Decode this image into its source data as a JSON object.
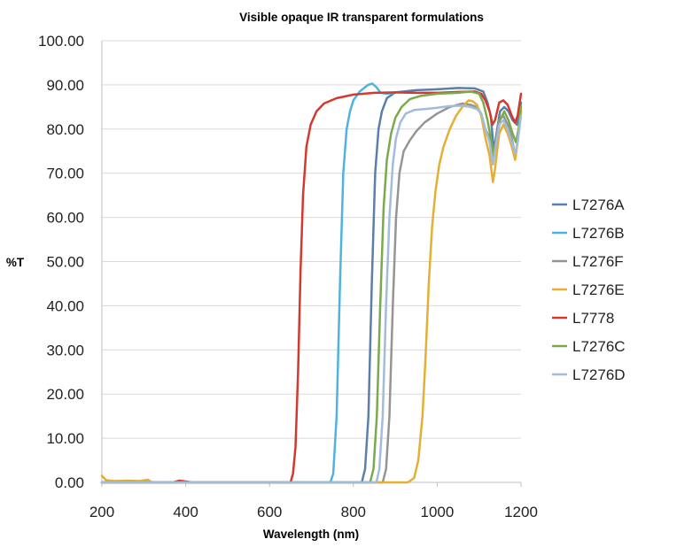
{
  "chart_data": {
    "type": "line",
    "title": "Visible opaque IR transparent formulations",
    "xlabel": "Wavelength (nm)",
    "ylabel": "%T",
    "xlim": [
      200,
      1200
    ],
    "ylim": [
      0,
      100
    ],
    "x_ticks": [
      "200",
      "400",
      "600",
      "800",
      "1000",
      "1200"
    ],
    "y_ticks": [
      "0.00",
      "10.00",
      "20.00",
      "30.00",
      "40.00",
      "50.00",
      "60.00",
      "70.00",
      "80.00",
      "90.00",
      "100.00"
    ],
    "grid": "horizontal",
    "legend_position": "right",
    "series": [
      {
        "name": "L7276A",
        "color": "#5b7fa8",
        "points": [
          [
            200,
            0
          ],
          [
            820,
            0
          ],
          [
            828,
            3
          ],
          [
            836,
            15
          ],
          [
            844,
            45
          ],
          [
            852,
            70
          ],
          [
            860,
            80
          ],
          [
            868,
            84
          ],
          [
            880,
            87
          ],
          [
            900,
            88.3
          ],
          [
            950,
            88.8
          ],
          [
            1000,
            89.0
          ],
          [
            1050,
            89.3
          ],
          [
            1090,
            89.2
          ],
          [
            1110,
            88.5
          ],
          [
            1120,
            86
          ],
          [
            1128,
            83
          ],
          [
            1135,
            75
          ],
          [
            1140,
            78
          ],
          [
            1150,
            84
          ],
          [
            1160,
            85
          ],
          [
            1170,
            84
          ],
          [
            1180,
            82
          ],
          [
            1190,
            81
          ],
          [
            1200,
            86
          ]
        ]
      },
      {
        "name": "L7276B",
        "color": "#4fb3e0",
        "points": [
          [
            200,
            0
          ],
          [
            745,
            0
          ],
          [
            752,
            2
          ],
          [
            760,
            15
          ],
          [
            768,
            45
          ],
          [
            776,
            70
          ],
          [
            784,
            80
          ],
          [
            792,
            84
          ],
          [
            800,
            86.5
          ],
          [
            815,
            88.5
          ],
          [
            835,
            90
          ],
          [
            845,
            90.3
          ],
          [
            855,
            89.5
          ],
          [
            865,
            88.2
          ],
          [
            880,
            88
          ],
          [
            900,
            88.2
          ]
        ]
      },
      {
        "name": "L7276F",
        "color": "#959595",
        "points": [
          [
            200,
            0
          ],
          [
            870,
            0
          ],
          [
            878,
            3
          ],
          [
            886,
            15
          ],
          [
            894,
            40
          ],
          [
            902,
            60
          ],
          [
            910,
            70
          ],
          [
            920,
            75
          ],
          [
            935,
            77.5
          ],
          [
            950,
            79.5
          ],
          [
            970,
            81.5
          ],
          [
            1000,
            83.5
          ],
          [
            1030,
            85
          ],
          [
            1060,
            85.8
          ],
          [
            1080,
            85.5
          ],
          [
            1095,
            85
          ],
          [
            1105,
            83.5
          ],
          [
            1115,
            80
          ],
          [
            1125,
            78
          ],
          [
            1133,
            72
          ],
          [
            1138,
            76
          ],
          [
            1148,
            82
          ],
          [
            1158,
            83
          ],
          [
            1168,
            81
          ],
          [
            1178,
            78
          ],
          [
            1186,
            74
          ],
          [
            1192,
            77
          ],
          [
            1200,
            84
          ]
        ]
      },
      {
        "name": "L7276E",
        "color": "#e3b035",
        "points": [
          [
            200,
            1.5
          ],
          [
            210,
            0.5
          ],
          [
            230,
            0.3
          ],
          [
            260,
            0.4
          ],
          [
            290,
            0.3
          ],
          [
            310,
            0.6
          ],
          [
            320,
            0
          ],
          [
            930,
            0
          ],
          [
            945,
            1
          ],
          [
            955,
            5
          ],
          [
            965,
            15
          ],
          [
            972,
            28
          ],
          [
            980,
            45
          ],
          [
            988,
            58
          ],
          [
            996,
            66
          ],
          [
            1005,
            72
          ],
          [
            1015,
            76
          ],
          [
            1030,
            80
          ],
          [
            1045,
            83
          ],
          [
            1060,
            85
          ],
          [
            1075,
            86.5
          ],
          [
            1085,
            86.3
          ],
          [
            1095,
            85.5
          ],
          [
            1105,
            83
          ],
          [
            1115,
            78
          ],
          [
            1125,
            74
          ],
          [
            1133,
            68
          ],
          [
            1138,
            71
          ],
          [
            1148,
            79
          ],
          [
            1158,
            81
          ],
          [
            1168,
            79
          ],
          [
            1178,
            76
          ],
          [
            1186,
            73
          ],
          [
            1192,
            77
          ],
          [
            1200,
            84
          ]
        ]
      },
      {
        "name": "L7778",
        "color": "#d23a2f",
        "points": [
          [
            200,
            0
          ],
          [
            370,
            0
          ],
          [
            385,
            0.4
          ],
          [
            400,
            0.2
          ],
          [
            415,
            0
          ],
          [
            650,
            0
          ],
          [
            656,
            2
          ],
          [
            662,
            8
          ],
          [
            668,
            25
          ],
          [
            674,
            48
          ],
          [
            680,
            65
          ],
          [
            688,
            76
          ],
          [
            698,
            81
          ],
          [
            712,
            84
          ],
          [
            730,
            85.8
          ],
          [
            760,
            87
          ],
          [
            800,
            87.8
          ],
          [
            850,
            88.2
          ],
          [
            900,
            88.3
          ],
          [
            950,
            88.2
          ],
          [
            1000,
            88.2
          ],
          [
            1050,
            88.4
          ],
          [
            1090,
            88.5
          ],
          [
            1105,
            88
          ],
          [
            1115,
            86.5
          ],
          [
            1125,
            84
          ],
          [
            1132,
            81
          ],
          [
            1138,
            82
          ],
          [
            1148,
            86
          ],
          [
            1158,
            86.5
          ],
          [
            1168,
            85.5
          ],
          [
            1178,
            83
          ],
          [
            1186,
            81.5
          ],
          [
            1192,
            83
          ],
          [
            1200,
            88
          ]
        ]
      },
      {
        "name": "L7276C",
        "color": "#7aaa4c",
        "points": [
          [
            200,
            0
          ],
          [
            840,
            0
          ],
          [
            848,
            3
          ],
          [
            856,
            15
          ],
          [
            864,
            40
          ],
          [
            872,
            62
          ],
          [
            880,
            73
          ],
          [
            890,
            79
          ],
          [
            900,
            82.5
          ],
          [
            915,
            85
          ],
          [
            935,
            86.8
          ],
          [
            960,
            87.5
          ],
          [
            1000,
            88
          ],
          [
            1050,
            88.2
          ],
          [
            1080,
            88.5
          ],
          [
            1100,
            88
          ],
          [
            1110,
            86
          ],
          [
            1120,
            82
          ],
          [
            1128,
            78
          ],
          [
            1135,
            74
          ],
          [
            1140,
            76
          ],
          [
            1150,
            82
          ],
          [
            1160,
            84
          ],
          [
            1170,
            82
          ],
          [
            1180,
            79
          ],
          [
            1188,
            77
          ],
          [
            1194,
            80
          ],
          [
            1200,
            85
          ]
        ]
      },
      {
        "name": "L7276D",
        "color": "#a4bcdc",
        "points": [
          [
            200,
            0
          ],
          [
            855,
            0
          ],
          [
            862,
            3
          ],
          [
            870,
            15
          ],
          [
            878,
            40
          ],
          [
            886,
            60
          ],
          [
            894,
            72
          ],
          [
            902,
            78
          ],
          [
            912,
            81.5
          ],
          [
            925,
            83.5
          ],
          [
            945,
            84.3
          ],
          [
            970,
            84.5
          ],
          [
            1000,
            84.8
          ],
          [
            1030,
            85.2
          ],
          [
            1060,
            85.3
          ],
          [
            1080,
            85
          ],
          [
            1095,
            84.5
          ],
          [
            1105,
            83.5
          ],
          [
            1115,
            80
          ],
          [
            1125,
            77
          ],
          [
            1133,
            72
          ],
          [
            1138,
            75
          ],
          [
            1148,
            81
          ],
          [
            1158,
            82
          ],
          [
            1168,
            80
          ],
          [
            1178,
            77
          ],
          [
            1186,
            74.5
          ],
          [
            1192,
            77
          ],
          [
            1200,
            83
          ]
        ]
      }
    ]
  }
}
